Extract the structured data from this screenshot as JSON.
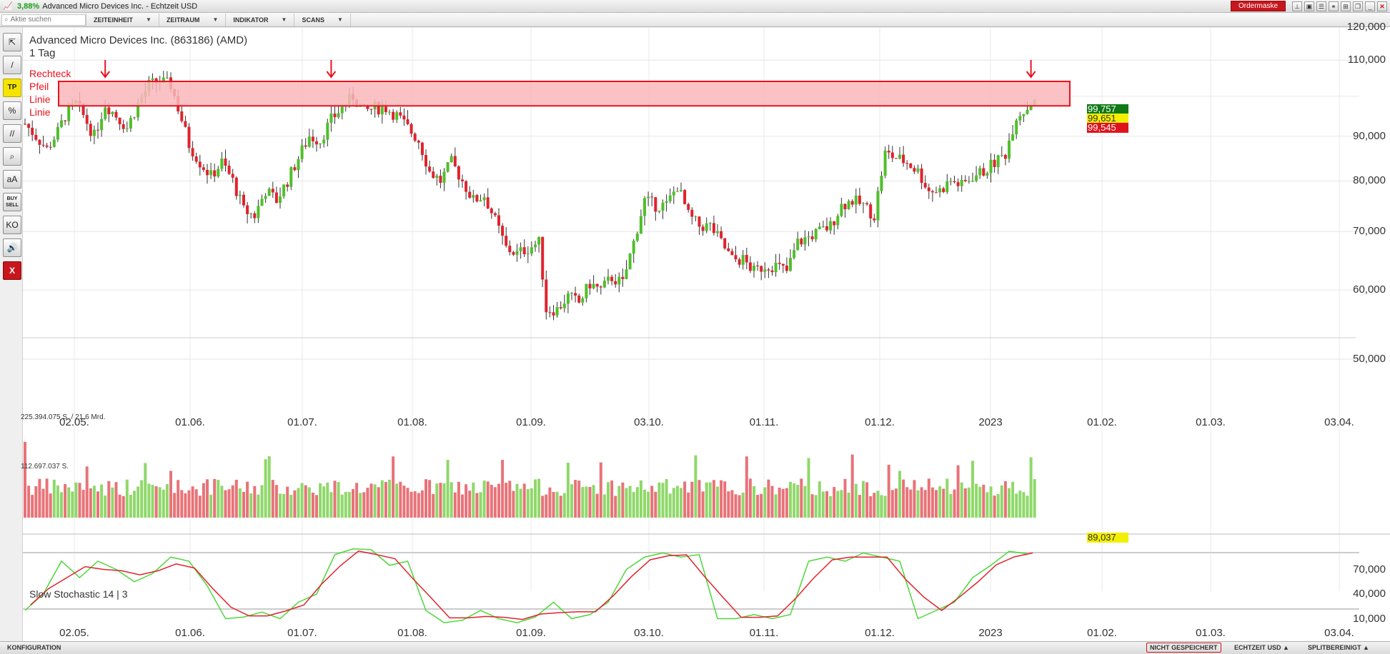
{
  "window": {
    "change_pct": "3,88%",
    "title": "Advanced Micro Devices Inc. - Echtzeit USD",
    "ordermaske_label": "Ordermaske",
    "icons": [
      "pin-icon",
      "copy-icon",
      "list-icon",
      "link-icon",
      "grid-icon",
      "restore-icon",
      "minimize-icon",
      "close-icon"
    ]
  },
  "toolbar": {
    "search_placeholder": "Aktie suchen",
    "menus": [
      "ZEITEINHEIT",
      "ZEITRAUM",
      "INDIKATOR",
      "SCANS"
    ]
  },
  "tools": [
    {
      "name": "cursor-tool",
      "glyph": "⇱"
    },
    {
      "name": "line-tool",
      "glyph": "/"
    },
    {
      "name": "tp-tool",
      "glyph": "TP"
    },
    {
      "name": "percent-tool",
      "glyph": "%"
    },
    {
      "name": "parallel-tool",
      "glyph": "//"
    },
    {
      "name": "zoom-tool",
      "glyph": "⌕"
    },
    {
      "name": "text-tool",
      "glyph": "aA"
    },
    {
      "name": "buy-sell-tool",
      "glyph": "BUY SELL"
    },
    {
      "name": "ko-tool",
      "glyph": "KO"
    },
    {
      "name": "sound-tool",
      "glyph": "🔊"
    },
    {
      "name": "delete-tool",
      "glyph": "X"
    }
  ],
  "chart_header": {
    "title": "Advanced Micro Devices Inc. (863186) (AMD)",
    "interval": "1 Tag"
  },
  "drawing_labels": [
    "Rechteck",
    "Pfeil",
    "Linie",
    "Linie"
  ],
  "volume_labels": {
    "max": "225.394.075 S. / 21,6 Mrd.",
    "mid": "112.697.037 S."
  },
  "stoch_label": "Slow Stochastic  14 | 3",
  "price_tags": {
    "green": {
      "text": "99,757",
      "color": "#0f7a16"
    },
    "yellow": {
      "text": "99,651",
      "color": "#f3ef00"
    },
    "red": {
      "text": "99,545",
      "color": "#e0121c"
    }
  },
  "stoch_value_tag": "89,037",
  "colors": {
    "up": "#4fc02a",
    "down": "#e0232d",
    "vol_up": "#8fd86a",
    "vol_down": "#e87378",
    "rect_fill": "#f9b7ba",
    "rect_stroke": "#e8121e",
    "k_line": "#4cd83a",
    "d_line": "#e0232d"
  },
  "status": {
    "konfiguration": "KONFIGURATION",
    "nicht_gespeichert": "NICHT GESPEICHERT",
    "echtzeit": "ECHTZEIT USD ▲",
    "split": "SPLITBEREINIGT ▲"
  },
  "chart_data": {
    "type": "candlestick",
    "title": "Advanced Micro Devices Inc. (863186) (AMD)",
    "interval": "1 Tag",
    "y_scale": "log",
    "y_ticks": [
      50,
      60,
      70,
      80,
      90,
      100,
      110,
      120
    ],
    "y_tick_labels": [
      "50,000",
      "60,000",
      "70,000",
      "80,000",
      "90,000",
      "",
      "110,000",
      "120,000"
    ],
    "x_tick_labels": [
      "02.05.",
      "01.06.",
      "01.07.",
      "01.08.",
      "01.09.",
      "03.10.",
      "01.11.",
      "01.12.",
      "2023",
      "01.02.",
      "01.03.",
      "03.04."
    ],
    "close_path": [
      [
        0,
        93
      ],
      [
        3,
        90
      ],
      [
        6,
        87
      ],
      [
        9,
        91
      ],
      [
        11,
        95
      ],
      [
        14,
        98
      ],
      [
        16,
        95
      ],
      [
        19,
        90
      ],
      [
        22,
        98
      ],
      [
        25,
        95
      ],
      [
        28,
        92
      ],
      [
        31,
        98
      ],
      [
        34,
        103
      ],
      [
        37,
        104
      ],
      [
        40,
        103
      ],
      [
        42,
        97
      ],
      [
        45,
        88
      ],
      [
        48,
        84
      ],
      [
        51,
        81
      ],
      [
        54,
        84
      ],
      [
        57,
        80
      ],
      [
        60,
        74
      ],
      [
        63,
        73
      ],
      [
        66,
        78
      ],
      [
        69,
        76
      ],
      [
        72,
        80
      ],
      [
        75,
        85
      ],
      [
        78,
        90
      ],
      [
        81,
        89
      ],
      [
        84,
        94
      ],
      [
        87,
        97
      ],
      [
        90,
        100
      ],
      [
        93,
        96
      ],
      [
        96,
        97
      ],
      [
        99,
        97
      ],
      [
        102,
        95
      ],
      [
        105,
        92
      ],
      [
        108,
        89
      ],
      [
        111,
        82
      ],
      [
        114,
        80
      ],
      [
        117,
        84
      ],
      [
        120,
        80
      ],
      [
        123,
        76
      ],
      [
        126,
        77
      ],
      [
        129,
        72
      ],
      [
        132,
        67
      ],
      [
        135,
        66
      ],
      [
        138,
        67
      ],
      [
        141,
        68
      ],
      [
        143,
        57
      ],
      [
        146,
        57
      ],
      [
        149,
        59
      ],
      [
        152,
        58
      ],
      [
        155,
        61
      ],
      [
        158,
        60
      ],
      [
        161,
        62
      ],
      [
        164,
        61
      ],
      [
        167,
        68
      ],
      [
        170,
        76
      ],
      [
        173,
        75
      ],
      [
        176,
        75
      ],
      [
        179,
        79
      ],
      [
        182,
        73
      ],
      [
        185,
        71
      ],
      [
        188,
        71
      ],
      [
        191,
        68
      ],
      [
        194,
        65
      ],
      [
        197,
        65
      ],
      [
        200,
        63
      ],
      [
        203,
        64
      ],
      [
        206,
        64
      ],
      [
        209,
        63
      ],
      [
        212,
        68
      ],
      [
        215,
        69
      ],
      [
        218,
        70
      ],
      [
        221,
        71
      ],
      [
        224,
        75
      ],
      [
        227,
        76
      ],
      [
        230,
        75
      ],
      [
        233,
        73
      ],
      [
        236,
        86
      ],
      [
        239,
        85
      ],
      [
        242,
        84
      ],
      [
        245,
        82
      ],
      [
        248,
        78
      ],
      [
        251,
        78
      ],
      [
        254,
        80
      ],
      [
        257,
        79
      ],
      [
        260,
        81
      ],
      [
        263,
        82
      ],
      [
        266,
        84
      ],
      [
        269,
        86
      ],
      [
        272,
        95
      ],
      [
        275,
        97
      ],
      [
        277,
        99.7
      ]
    ],
    "n_candles": 278,
    "resistance_zone": {
      "top": 104,
      "bottom": 97.5,
      "x_start": 11,
      "x_end": 285
    },
    "arrows_at": [
      22,
      84,
      276
    ],
    "last_price": {
      "high": 99.757,
      "mid": 99.651,
      "low": 99.545
    },
    "volume": {
      "max_label": "225.394.075 S. / 21,6 Mrd.",
      "mid_label": "112.697.037 S."
    },
    "stochastic": {
      "name": "Slow Stochastic",
      "params": "14 | 3",
      "y_ticks": [
        10,
        40,
        70
      ],
      "y_tick_labels": [
        "10,000",
        "40,000",
        "70,000"
      ],
      "levels": [
        20,
        80
      ],
      "last_value": "89,037",
      "k_path": [
        [
          0,
          20
        ],
        [
          5,
          40
        ],
        [
          10,
          80
        ],
        [
          15,
          60
        ],
        [
          20,
          80
        ],
        [
          25,
          70
        ],
        [
          30,
          55
        ],
        [
          35,
          65
        ],
        [
          40,
          85
        ],
        [
          45,
          80
        ],
        [
          50,
          50
        ],
        [
          55,
          10
        ],
        [
          60,
          12
        ],
        [
          65,
          18
        ],
        [
          70,
          10
        ],
        [
          75,
          30
        ],
        [
          80,
          40
        ],
        [
          85,
          88
        ],
        [
          90,
          95
        ],
        [
          95,
          94
        ],
        [
          100,
          75
        ],
        [
          105,
          80
        ],
        [
          110,
          20
        ],
        [
          115,
          5
        ],
        [
          120,
          8
        ],
        [
          125,
          20
        ],
        [
          130,
          10
        ],
        [
          135,
          5
        ],
        [
          140,
          12
        ],
        [
          145,
          30
        ],
        [
          150,
          10
        ],
        [
          155,
          15
        ],
        [
          160,
          30
        ],
        [
          165,
          70
        ],
        [
          170,
          85
        ],
        [
          175,
          90
        ],
        [
          180,
          85
        ],
        [
          185,
          88
        ],
        [
          190,
          10
        ],
        [
          195,
          10
        ],
        [
          200,
          15
        ],
        [
          205,
          10
        ],
        [
          210,
          15
        ],
        [
          215,
          80
        ],
        [
          220,
          85
        ],
        [
          225,
          80
        ],
        [
          230,
          90
        ],
        [
          235,
          85
        ],
        [
          240,
          80
        ],
        [
          245,
          10
        ],
        [
          250,
          20
        ],
        [
          255,
          30
        ],
        [
          260,
          60
        ],
        [
          265,
          75
        ],
        [
          270,
          92
        ],
        [
          275,
          89
        ]
      ]
    }
  }
}
